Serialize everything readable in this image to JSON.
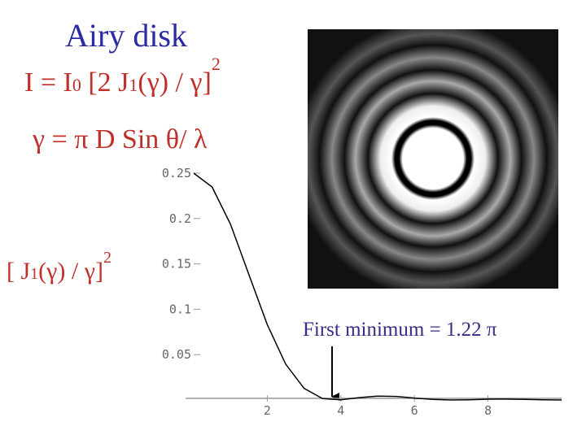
{
  "header": {
    "title": "Airy disk"
  },
  "equation": {
    "parts": [
      "I = I",
      "0",
      " [2 J",
      "1",
      "(γ) / γ]",
      "2"
    ]
  },
  "definition": "γ = π D Sin θ/ λ",
  "y_label": {
    "parts": [
      "[ J",
      "1",
      "(γ) / γ]",
      "2"
    ]
  },
  "annotation": "First minimum = 1.22 π",
  "chart_data": {
    "type": "line",
    "x": [
      0,
      0.5,
      1,
      1.5,
      2,
      2.5,
      3,
      3.5,
      4,
      4.5,
      5,
      5.5,
      6,
      6.5,
      7,
      7.5,
      8,
      8.5,
      9,
      9.5,
      10
    ],
    "values": [
      0.25,
      0.2348,
      0.1937,
      0.1383,
      0.0831,
      0.0395,
      0.0128,
      0.0015,
      0.0003,
      0.0026,
      0.0043,
      0.0039,
      0.0021,
      0.0006,
      0,
      0.0003,
      0.0009,
      0.001,
      0.0007,
      0.0003,
      0
    ],
    "color": "#000000",
    "xlim": [
      0,
      10
    ],
    "xticks": [
      2,
      4,
      6,
      8
    ],
    "ylim": [
      0,
      0.25
    ],
    "yticks": [
      0.05,
      0.1,
      0.15,
      0.2,
      0.25
    ]
  }
}
